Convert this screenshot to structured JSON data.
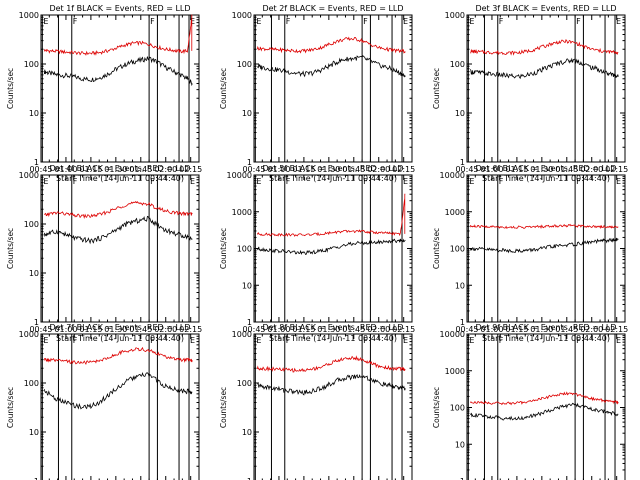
{
  "figure": {
    "colors": {
      "events": "#000000",
      "lld": "#dd0000",
      "axes": "#000000",
      "background": "#ffffff"
    },
    "shared": {
      "xlabel": "Start Time (14-Jun-11 00:44:40)",
      "ylabel": "Counts/sec",
      "x_ticks": [
        "00:45",
        "01:00",
        "01:15",
        "01:30",
        "01:45",
        "02:00",
        "02:15"
      ],
      "x_range_minutes": [
        0,
        95
      ],
      "x_tick_minutes": [
        0,
        15,
        30,
        45,
        60,
        75,
        90
      ],
      "y_scale": "log",
      "marker_minutes": [
        0.8,
        10.5,
        18.5,
        65.0,
        70.0,
        83.0,
        89.0
      ],
      "marker_labels": [
        {
          "text": "E",
          "minute": 0.8
        },
        {
          "text": "F",
          "minute": 18.5
        },
        {
          "text": "F",
          "minute": 65.0
        },
        {
          "text": "E",
          "minute": 89.0
        }
      ]
    }
  },
  "chart_data": [
    {
      "type": "line",
      "title": "Det 1f BLACK = Events, RED = LLD",
      "ylim": [
        1,
        1000
      ],
      "y_ticks": [
        "1",
        "10",
        "100",
        "1000"
      ],
      "x": [
        2,
        5,
        10,
        15,
        20,
        25,
        30,
        35,
        40,
        45,
        50,
        55,
        60,
        65,
        70,
        75,
        80,
        84,
        88,
        91
      ],
      "series": [
        {
          "role": "events",
          "values": [
            70,
            65,
            60,
            58,
            55,
            50,
            48,
            52,
            62,
            78,
            95,
            110,
            120,
            130,
            110,
            85,
            70,
            60,
            50,
            40
          ]
        },
        {
          "role": "lld",
          "values": [
            190,
            185,
            180,
            175,
            170,
            165,
            165,
            170,
            185,
            210,
            240,
            265,
            270,
            250,
            220,
            200,
            190,
            180,
            185,
            1000
          ]
        }
      ]
    },
    {
      "type": "line",
      "title": "Det 2f BLACK = Events, RED = LLD",
      "ylim": [
        1,
        1000
      ],
      "y_ticks": [
        "1",
        "10",
        "100",
        "1000"
      ],
      "x": [
        2,
        5,
        10,
        15,
        20,
        25,
        30,
        35,
        40,
        45,
        50,
        55,
        60,
        65,
        70,
        75,
        80,
        84,
        88,
        91
      ],
      "series": [
        {
          "role": "events",
          "values": [
            90,
            85,
            80,
            75,
            70,
            65,
            62,
            65,
            75,
            90,
            110,
            125,
            130,
            135,
            115,
            95,
            85,
            75,
            65,
            55
          ]
        },
        {
          "role": "lld",
          "values": [
            210,
            205,
            200,
            195,
            190,
            185,
            185,
            195,
            215,
            250,
            290,
            320,
            330,
            300,
            250,
            215,
            200,
            190,
            185,
            180
          ]
        }
      ]
    },
    {
      "type": "line",
      "title": "Det 3f BLACK = Events, RED = LLD",
      "ylim": [
        1,
        1000
      ],
      "y_ticks": [
        "1",
        "10",
        "100",
        "1000"
      ],
      "x": [
        2,
        5,
        10,
        15,
        20,
        25,
        30,
        35,
        40,
        45,
        50,
        55,
        60,
        65,
        70,
        75,
        80,
        84,
        88,
        91
      ],
      "series": [
        {
          "role": "events",
          "values": [
            70,
            68,
            65,
            62,
            60,
            57,
            55,
            58,
            65,
            75,
            90,
            105,
            115,
            120,
            100,
            85,
            75,
            65,
            60,
            55
          ]
        },
        {
          "role": "lld",
          "values": [
            180,
            178,
            175,
            172,
            170,
            168,
            170,
            178,
            195,
            220,
            255,
            280,
            290,
            270,
            230,
            200,
            185,
            178,
            175,
            172
          ]
        }
      ]
    },
    {
      "type": "line",
      "title": "Det 4f BLACK = Events, RED = LLD",
      "ylim": [
        1,
        1000
      ],
      "y_ticks": [
        "1",
        "10",
        "100",
        "1000"
      ],
      "x": [
        2,
        5,
        10,
        15,
        20,
        25,
        30,
        35,
        40,
        45,
        50,
        55,
        60,
        65,
        70,
        75,
        80,
        84,
        88,
        91
      ],
      "series": [
        {
          "role": "events",
          "values": [
            60,
            65,
            70,
            60,
            52,
            48,
            45,
            50,
            60,
            75,
            95,
            110,
            120,
            130,
            95,
            75,
            65,
            60,
            55,
            50
          ]
        },
        {
          "role": "lld",
          "values": [
            150,
            160,
            170,
            160,
            150,
            145,
            145,
            155,
            175,
            205,
            240,
            265,
            270,
            250,
            210,
            185,
            170,
            165,
            160,
            160
          ]
        }
      ]
    },
    {
      "type": "line",
      "title": "Det 5f BLACK = Events, RED = LLD",
      "ylim": [
        1,
        10000
      ],
      "y_ticks": [
        "1",
        "10",
        "100",
        "1000",
        "10000"
      ],
      "x": [
        2,
        5,
        10,
        15,
        20,
        25,
        30,
        35,
        40,
        45,
        50,
        55,
        60,
        65,
        70,
        75,
        80,
        84,
        88,
        91
      ],
      "series": [
        {
          "role": "events",
          "values": [
            100,
            95,
            90,
            85,
            82,
            78,
            75,
            78,
            85,
            95,
            110,
            125,
            135,
            145,
            140,
            150,
            155,
            160,
            165,
            170
          ]
        },
        {
          "role": "lld",
          "values": [
            250,
            245,
            240,
            240,
            238,
            235,
            235,
            240,
            250,
            265,
            280,
            290,
            295,
            290,
            280,
            270,
            260,
            255,
            250,
            3000
          ]
        }
      ]
    },
    {
      "type": "line",
      "title": "Det 6f BLACK = Events, RED = LLD",
      "ylim": [
        1,
        10000
      ],
      "y_ticks": [
        "1",
        "10",
        "100",
        "1000",
        "10000"
      ],
      "x": [
        2,
        5,
        10,
        15,
        20,
        25,
        30,
        35,
        40,
        45,
        50,
        55,
        60,
        65,
        70,
        75,
        80,
        84,
        88,
        91
      ],
      "series": [
        {
          "role": "events",
          "values": [
            100,
            98,
            95,
            92,
            90,
            88,
            86,
            88,
            92,
            100,
            110,
            118,
            125,
            130,
            140,
            150,
            160,
            165,
            170,
            175
          ]
        },
        {
          "role": "lld",
          "values": [
            400,
            398,
            395,
            390,
            385,
            380,
            378,
            380,
            385,
            395,
            405,
            415,
            420,
            418,
            410,
            400,
            395,
            390,
            385,
            380
          ]
        }
      ]
    },
    {
      "type": "line",
      "title": "Det 7f BLACK = Events, RED = LLD",
      "ylim": [
        1,
        1000
      ],
      "y_ticks": [
        "1",
        "10",
        "100",
        "1000"
      ],
      "x": [
        2,
        5,
        10,
        15,
        20,
        25,
        30,
        35,
        40,
        45,
        50,
        55,
        60,
        65,
        70,
        75,
        80,
        84,
        88,
        91
      ],
      "series": [
        {
          "role": "events",
          "values": [
            70,
            60,
            45,
            40,
            35,
            32,
            34,
            40,
            55,
            75,
            100,
            125,
            140,
            150,
            110,
            85,
            75,
            70,
            68,
            65
          ]
        },
        {
          "role": "lld",
          "values": [
            300,
            295,
            285,
            275,
            265,
            260,
            265,
            285,
            325,
            380,
            440,
            480,
            490,
            460,
            400,
            340,
            310,
            300,
            295,
            290
          ]
        }
      ]
    },
    {
      "type": "line",
      "title": "Det 8f BLACK = Events, RED = LLD",
      "ylim": [
        1,
        1000
      ],
      "y_ticks": [
        "1",
        "10",
        "100",
        "1000"
      ],
      "x": [
        2,
        5,
        10,
        15,
        20,
        25,
        30,
        35,
        40,
        45,
        50,
        55,
        60,
        65,
        70,
        75,
        80,
        84,
        88,
        91
      ],
      "series": [
        {
          "role": "events",
          "values": [
            90,
            85,
            80,
            75,
            70,
            66,
            64,
            68,
            78,
            92,
            112,
            128,
            135,
            140,
            120,
            100,
            90,
            85,
            80,
            78
          ]
        },
        {
          "role": "lld",
          "values": [
            200,
            198,
            195,
            190,
            185,
            180,
            182,
            192,
            212,
            245,
            285,
            315,
            325,
            300,
            255,
            220,
            205,
            198,
            195,
            190
          ]
        }
      ]
    },
    {
      "type": "line",
      "title": "Det 9f BLACK = Events, RED = LLD",
      "ylim": [
        1,
        10000
      ],
      "y_ticks": [
        "1",
        "10",
        "100",
        "1000",
        "10000"
      ],
      "x": [
        2,
        5,
        10,
        15,
        20,
        25,
        30,
        35,
        40,
        45,
        50,
        55,
        60,
        65,
        70,
        75,
        80,
        84,
        88,
        91
      ],
      "series": [
        {
          "role": "events",
          "values": [
            65,
            62,
            58,
            55,
            52,
            50,
            50,
            53,
            60,
            70,
            85,
            100,
            110,
            120,
            105,
            90,
            80,
            75,
            70,
            65
          ]
        },
        {
          "role": "lld",
          "values": [
            140,
            138,
            135,
            132,
            130,
            130,
            132,
            140,
            155,
            175,
            200,
            225,
            240,
            230,
            200,
            175,
            160,
            150,
            145,
            140
          ]
        }
      ]
    }
  ]
}
